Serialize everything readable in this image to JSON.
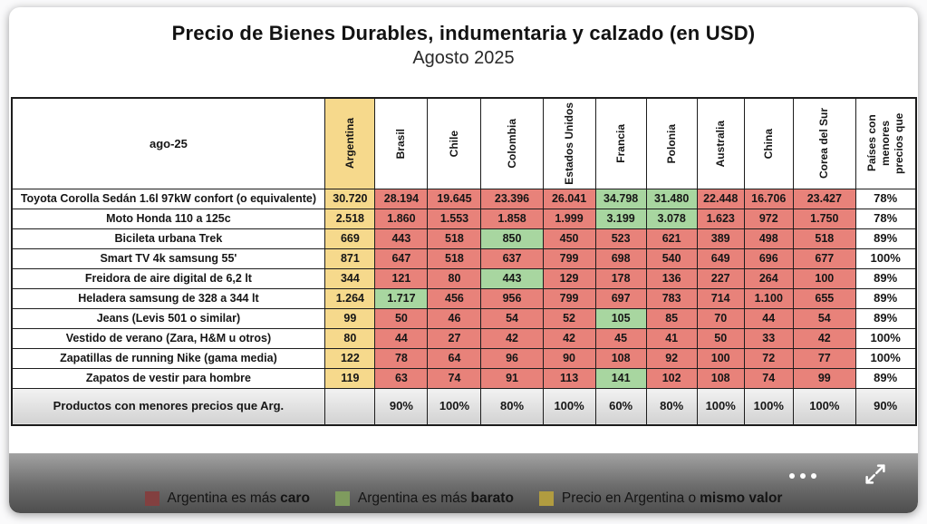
{
  "card": {
    "title": "Precio de Bienes Durables, indumentaria y calzado (en USD)",
    "subtitle": "Agosto 2025"
  },
  "chart_data": {
    "type": "table",
    "title": "Precio de Bienes Durables, indumentaria y calzado (en USD)",
    "subtitle": "Agosto 2025",
    "corner_label": "ago-25",
    "columns": [
      "Argentina",
      "Brasil",
      "Chile",
      "Colombia",
      "Estados Unidos",
      "Francia",
      "Polonia",
      "Australia",
      "China",
      "Corea del Sur"
    ],
    "pct_column_header": "Países con menores precios que",
    "rows": [
      {
        "label": "Toyota Corolla Sedán 1.6l 97kW confort (o equivalente)",
        "argentina": "30.720",
        "values": [
          "28.194",
          "19.645",
          "23.396",
          "26.041",
          "34.798",
          "31.480",
          "22.448",
          "16.706",
          "23.427"
        ],
        "status": [
          "caro",
          "caro",
          "caro",
          "caro",
          "barato",
          "barato",
          "caro",
          "caro",
          "caro"
        ],
        "pct": "78%"
      },
      {
        "label": "Moto Honda 110 a 125c",
        "argentina": "2.518",
        "values": [
          "1.860",
          "1.553",
          "1.858",
          "1.999",
          "3.199",
          "3.078",
          "1.623",
          "972",
          "1.750"
        ],
        "status": [
          "caro",
          "caro",
          "caro",
          "caro",
          "barato",
          "barato",
          "caro",
          "caro",
          "caro"
        ],
        "pct": "78%"
      },
      {
        "label": "Bicileta urbana Trek",
        "argentina": "669",
        "values": [
          "443",
          "518",
          "850",
          "450",
          "523",
          "621",
          "389",
          "498",
          "518"
        ],
        "status": [
          "caro",
          "caro",
          "barato",
          "caro",
          "caro",
          "caro",
          "caro",
          "caro",
          "caro"
        ],
        "pct": "89%"
      },
      {
        "label": "Smart TV 4k samsung 55'",
        "argentina": "871",
        "values": [
          "647",
          "518",
          "637",
          "799",
          "698",
          "540",
          "649",
          "696",
          "677"
        ],
        "status": [
          "caro",
          "caro",
          "caro",
          "caro",
          "caro",
          "caro",
          "caro",
          "caro",
          "caro"
        ],
        "pct": "100%"
      },
      {
        "label": "Freidora de aire digital de 6,2 lt",
        "argentina": "344",
        "values": [
          "121",
          "80",
          "443",
          "129",
          "178",
          "136",
          "227",
          "264",
          "100"
        ],
        "status": [
          "caro",
          "caro",
          "barato",
          "caro",
          "caro",
          "caro",
          "caro",
          "caro",
          "caro"
        ],
        "pct": "89%"
      },
      {
        "label": "Heladera samsung de 328 a 344 lt",
        "argentina": "1.264",
        "values": [
          "1.717",
          "456",
          "956",
          "799",
          "697",
          "783",
          "714",
          "1.100",
          "655"
        ],
        "status": [
          "barato",
          "caro",
          "caro",
          "caro",
          "caro",
          "caro",
          "caro",
          "caro",
          "caro"
        ],
        "pct": "89%"
      },
      {
        "label": "Jeans (Levis 501 o similar)",
        "argentina": "99",
        "values": [
          "50",
          "46",
          "54",
          "52",
          "105",
          "85",
          "70",
          "44",
          "54"
        ],
        "status": [
          "caro",
          "caro",
          "caro",
          "caro",
          "barato",
          "caro",
          "caro",
          "caro",
          "caro"
        ],
        "pct": "89%"
      },
      {
        "label": "Vestido de verano (Zara, H&M u otros)",
        "argentina": "80",
        "values": [
          "44",
          "27",
          "42",
          "42",
          "45",
          "41",
          "50",
          "33",
          "42"
        ],
        "status": [
          "caro",
          "caro",
          "caro",
          "caro",
          "caro",
          "caro",
          "caro",
          "caro",
          "caro"
        ],
        "pct": "100%"
      },
      {
        "label": "Zapatillas de running Nike (gama media)",
        "argentina": "122",
        "values": [
          "78",
          "64",
          "96",
          "90",
          "108",
          "92",
          "100",
          "72",
          "77"
        ],
        "status": [
          "caro",
          "caro",
          "caro",
          "caro",
          "caro",
          "caro",
          "caro",
          "caro",
          "caro"
        ],
        "pct": "100%"
      },
      {
        "label": "Zapatos de vestir para hombre",
        "argentina": "119",
        "values": [
          "63",
          "74",
          "91",
          "113",
          "141",
          "102",
          "108",
          "74",
          "99"
        ],
        "status": [
          "caro",
          "caro",
          "caro",
          "caro",
          "barato",
          "caro",
          "caro",
          "caro",
          "caro"
        ],
        "pct": "89%"
      }
    ],
    "summary_row": {
      "label": "Productos con menores precios que Arg.",
      "argentina": "",
      "values": [
        "90%",
        "100%",
        "80%",
        "100%",
        "60%",
        "80%",
        "100%",
        "100%",
        "100%"
      ],
      "pct": "90%"
    }
  },
  "legend": {
    "items": [
      {
        "text": "Argentina es más",
        "bold": "caro",
        "swatch": "#824040"
      },
      {
        "text": "Argentina es más",
        "bold": "barato",
        "swatch": "#7f9b5e"
      },
      {
        "text": "Precio en Argentina o",
        "bold": "mismo valor",
        "swatch": "#b19c40"
      }
    ]
  },
  "colors": {
    "argentina_cell": "#F6D98C",
    "caro_cell": "#E8827A",
    "barato_cell": "#A8D6A0"
  }
}
